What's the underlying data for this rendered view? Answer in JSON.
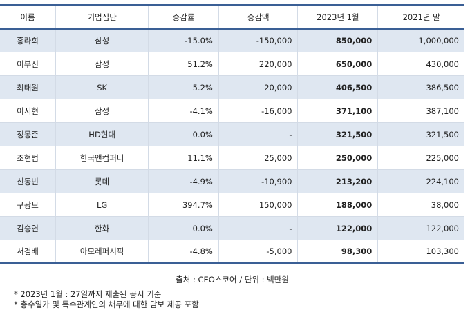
{
  "headers": [
    "이름",
    "기업집단",
    "증감률",
    "증감액",
    "2023년 1월",
    "2021년 말"
  ],
  "rows": [
    [
      "홍라희",
      "삼성",
      "-15.0%",
      "-150,000",
      "850,000",
      "1,000,000"
    ],
    [
      "이부진",
      "삼성",
      "51.2%",
      "220,000",
      "650,000",
      "430,000"
    ],
    [
      "최태원",
      "SK",
      "5.2%",
      "20,000",
      "406,500",
      "386,500"
    ],
    [
      "이서현",
      "삼성",
      "-4.1%",
      "-16,000",
      "371,100",
      "387,100"
    ],
    [
      "정몽준",
      "HD현대",
      "0.0%",
      "-",
      "321,500",
      "321,500"
    ],
    [
      "조현범",
      "한국앤컴퍼니",
      "11.1%",
      "25,000",
      "250,000",
      "225,000"
    ],
    [
      "신동빈",
      "롯데",
      "-4.9%",
      "-10,900",
      "213,200",
      "224,100"
    ],
    [
      "구광모",
      "LG",
      "394.7%",
      "150,000",
      "188,000",
      "38,000"
    ],
    [
      "김승연",
      "한화",
      "0.0%",
      "-",
      "122,000",
      "122,000"
    ],
    [
      "서경배",
      "아모레퍼시픽",
      "-4.8%",
      "-5,000",
      "98,300",
      "103,300"
    ]
  ],
  "source": "출처 : CEO스코어 / 단위 : 백만원",
  "notes": [
    "* 2023년 1월 : 27일까지 제출된 공시 기준",
    "* 총수일가 및 특수관계인의 채무에 대한 담보 제공 포함"
  ]
}
